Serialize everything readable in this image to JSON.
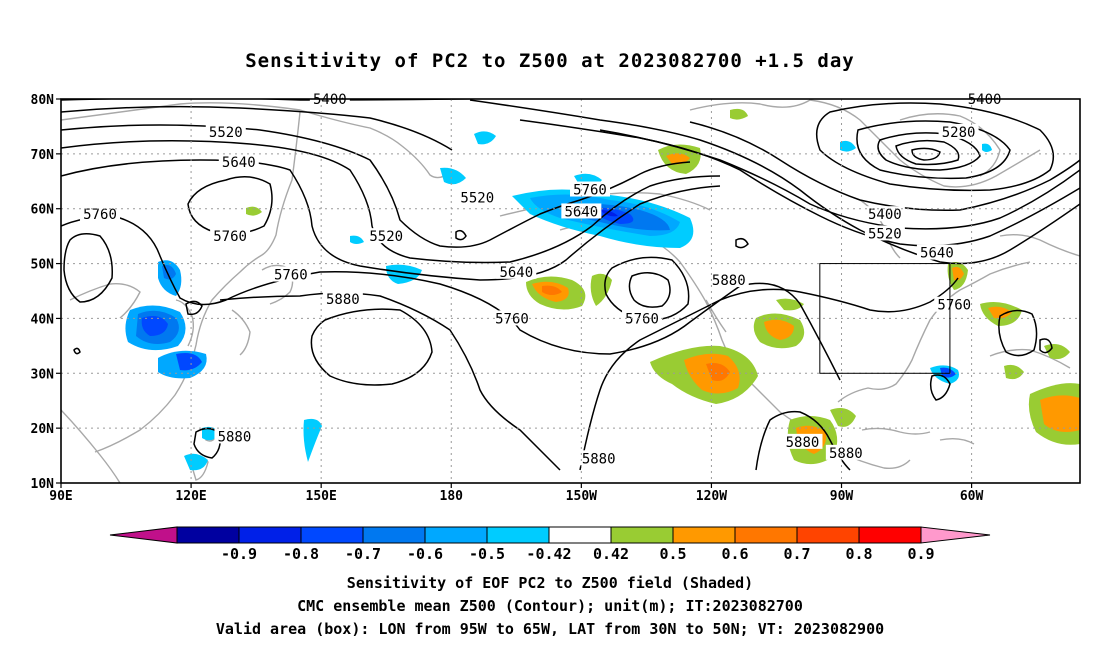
{
  "title": "Sensitivity of PC2 to Z500 at 2023082700 +1.5 day",
  "axes": {
    "lat_labels": [
      "80N",
      "70N",
      "60N",
      "50N",
      "40N",
      "30N",
      "20N",
      "10N"
    ],
    "lon_labels": [
      "90E",
      "120E",
      "150E",
      "180",
      "150W",
      "120W",
      "90W",
      "60W"
    ]
  },
  "contour_labels": [
    {
      "text": "5400",
      "lon": 152,
      "lat": 80
    },
    {
      "text": "5520",
      "lon": 128,
      "lat": 74
    },
    {
      "text": "5640",
      "lon": 131,
      "lat": 68.5
    },
    {
      "text": "5760",
      "lon": 99,
      "lat": 59
    },
    {
      "text": "5760",
      "lon": 129,
      "lat": 55
    },
    {
      "text": "5520",
      "lon": 165,
      "lat": 55
    },
    {
      "text": "5520",
      "lon": -174,
      "lat": 62
    },
    {
      "text": "5640",
      "lon": -150,
      "lat": 59.5
    },
    {
      "text": "5760",
      "lon": -148,
      "lat": 63.5
    },
    {
      "text": "5760",
      "lon": 143,
      "lat": 48
    },
    {
      "text": "5640",
      "lon": -165,
      "lat": 48.5
    },
    {
      "text": "5880",
      "lon": 155,
      "lat": 43.5
    },
    {
      "text": "5760",
      "lon": -166,
      "lat": 40
    },
    {
      "text": "5760",
      "lon": -136,
      "lat": 40
    },
    {
      "text": "5880",
      "lon": -116,
      "lat": 47
    },
    {
      "text": "5400",
      "lon": -57,
      "lat": 80
    },
    {
      "text": "5280",
      "lon": -63,
      "lat": 74
    },
    {
      "text": "5400",
      "lon": -80,
      "lat": 59
    },
    {
      "text": "5520",
      "lon": -80,
      "lat": 55.5
    },
    {
      "text": "5640",
      "lon": -68,
      "lat": 52
    },
    {
      "text": "5760",
      "lon": -64,
      "lat": 42.5
    },
    {
      "text": "5880",
      "lon": -99,
      "lat": 17.5
    },
    {
      "text": "5880",
      "lon": -89,
      "lat": 15.5
    },
    {
      "text": "5880",
      "lon": -146,
      "lat": 14.5
    },
    {
      "text": "5880",
      "lon": 130,
      "lat": 18.5
    }
  ],
  "colorbar": {
    "labels": [
      "-0.9",
      "-0.8",
      "-0.7",
      "-0.6",
      "-0.5",
      "-0.42",
      "0.42",
      "0.5",
      "0.6",
      "0.7",
      "0.8",
      "0.9"
    ],
    "colors": [
      "#0000a0",
      "#0020e8",
      "#0048ff",
      "#0078f0",
      "#00a8ff",
      "#00ccff",
      "#ffffff",
      "#99cc33",
      "#ff9900",
      "#ff7700",
      "#ff4400",
      "#ff0000"
    ],
    "low_extend_color": "#c0108a",
    "high_extend_color": "#ff99cc"
  },
  "valid_box": {
    "lon_w": -95,
    "lon_e": -65,
    "lat_s": 30,
    "lat_n": 50
  },
  "captions": {
    "line1": "Sensitivity of EOF PC2 to Z500 field (Shaded)",
    "line2": "CMC ensemble mean Z500 (Contour); unit(m); IT:2023082700",
    "line3": "Valid area (box): LON from 95W to 65W, LAT from 30N to 50N; VT: 2023082900"
  }
}
